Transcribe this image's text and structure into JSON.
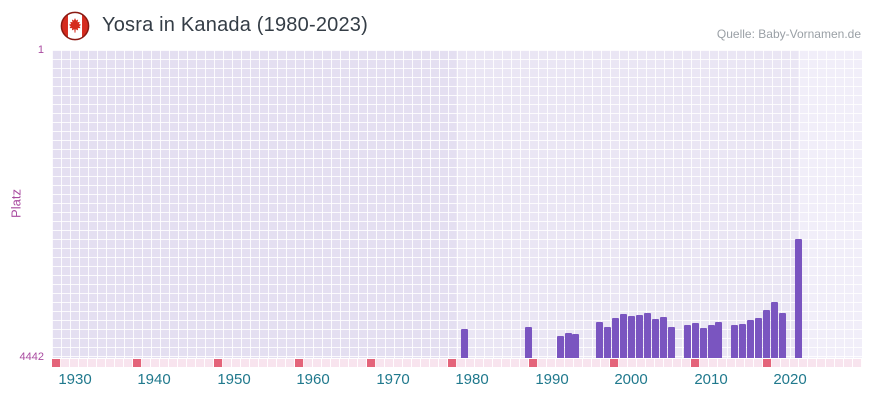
{
  "header": {
    "title": "Yosra in Kanada (1980-2023)",
    "source": "Quelle: Baby-Vornamen.de",
    "flag_icon": "canada-flag-icon"
  },
  "colors": {
    "title": "#343d46",
    "source": "#9aa0a6",
    "y_axis_text": "#a94ba0",
    "x_axis_text": "#20798d",
    "bar": "#7a55c0"
  },
  "chart_data": {
    "type": "bar",
    "title": "Yosra in Kanada (1980-2023)",
    "xlabel": "",
    "ylabel": "Platz",
    "y_axis": {
      "top_label": "1",
      "bottom_label": "4442",
      "min": 1,
      "max": 4442,
      "inverted": true
    },
    "x_ticks": [
      1930,
      1940,
      1950,
      1960,
      1970,
      1980,
      1990,
      2000,
      2010,
      2020
    ],
    "x_range": [
      1927,
      2030
    ],
    "grid": true,
    "legend": "none",
    "zones": [
      {
        "from_year": 1927,
        "to_year": 1978,
        "color": "#e4dff1"
      },
      {
        "from_year": 1978,
        "to_year": 2021,
        "color": "#eae6f4"
      },
      {
        "from_year": 2021,
        "to_year": 2030,
        "color": "#f1eef9"
      }
    ],
    "strip": {
      "light": "#f8e4ee",
      "red": "#e4647a",
      "red_years": [
        1930,
        1940,
        1950,
        1960,
        1970,
        1980,
        1990,
        2000,
        2010,
        2020
      ]
    },
    "series": [
      {
        "name": "Platz",
        "points": [
          {
            "year": 1979,
            "rank": 4020
          },
          {
            "year": 1987,
            "rank": 3990
          },
          {
            "year": 1991,
            "rank": 4130
          },
          {
            "year": 1992,
            "rank": 4080
          },
          {
            "year": 1993,
            "rank": 4090
          },
          {
            "year": 1996,
            "rank": 3930
          },
          {
            "year": 1997,
            "rank": 3990
          },
          {
            "year": 1998,
            "rank": 3870
          },
          {
            "year": 1999,
            "rank": 3810
          },
          {
            "year": 2000,
            "rank": 3840
          },
          {
            "year": 2001,
            "rank": 3820
          },
          {
            "year": 2002,
            "rank": 3800
          },
          {
            "year": 2003,
            "rank": 3880
          },
          {
            "year": 2004,
            "rank": 3850
          },
          {
            "year": 2005,
            "rank": 3990
          },
          {
            "year": 2007,
            "rank": 3960
          },
          {
            "year": 2008,
            "rank": 3940
          },
          {
            "year": 2009,
            "rank": 4010
          },
          {
            "year": 2010,
            "rank": 3970
          },
          {
            "year": 2011,
            "rank": 3930
          },
          {
            "year": 2013,
            "rank": 3960
          },
          {
            "year": 2014,
            "rank": 3950
          },
          {
            "year": 2015,
            "rank": 3890
          },
          {
            "year": 2016,
            "rank": 3870
          },
          {
            "year": 2017,
            "rank": 3750
          },
          {
            "year": 2018,
            "rank": 3630
          },
          {
            "year": 2019,
            "rank": 3790
          },
          {
            "year": 2021,
            "rank": 2730
          }
        ]
      }
    ]
  }
}
